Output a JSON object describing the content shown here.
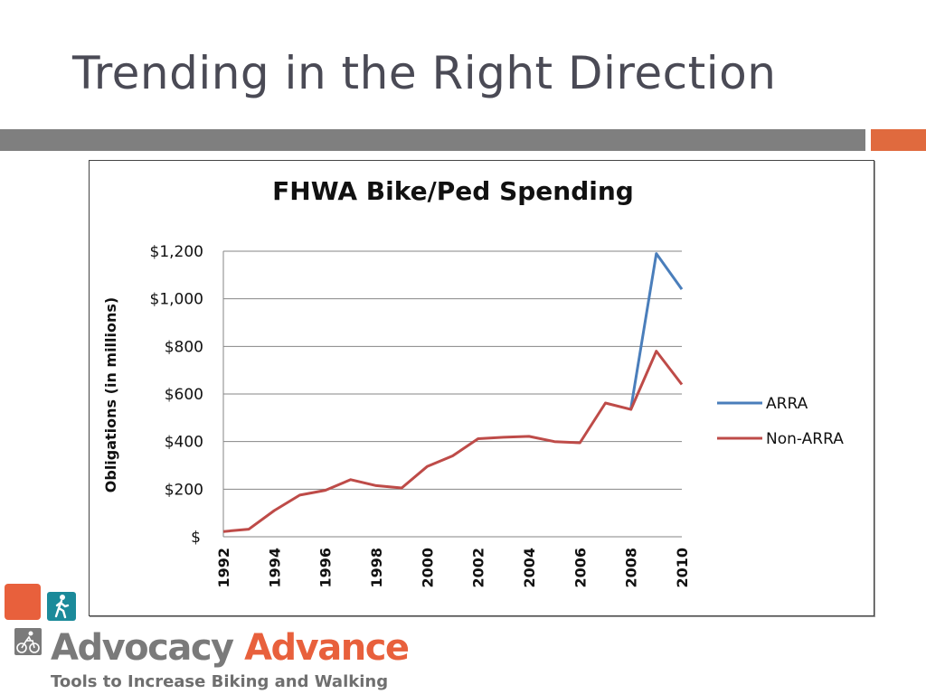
{
  "slide": {
    "title": "Trending in the Right Direction"
  },
  "colors": {
    "accent": "#e06a3e",
    "rule": "#7f7f7f",
    "arra": "#4a7ebb",
    "non_arra": "#be4b48",
    "grid": "#868686"
  },
  "chart_data": {
    "type": "line",
    "title": "FHWA Bike/Ped Spending",
    "xlabel": "",
    "ylabel": "Obligations (in millions)",
    "x": [
      1992,
      1993,
      1994,
      1995,
      1996,
      1997,
      1998,
      1999,
      2000,
      2001,
      2002,
      2003,
      2004,
      2005,
      2006,
      2007,
      2008,
      2009,
      2010
    ],
    "x_tick_labels": [
      "1992",
      "1994",
      "1996",
      "1998",
      "2000",
      "2002",
      "2004",
      "2006",
      "2008",
      "2010"
    ],
    "y_tick_labels": [
      "$",
      "$200",
      "$400",
      "$600",
      "$800",
      "$1,000",
      "$1,200"
    ],
    "ylim": [
      0,
      1200
    ],
    "grid": true,
    "legend_position": "right",
    "series": [
      {
        "name": "ARRA",
        "color": "#4a7ebb",
        "x": [
          2008,
          2009,
          2010
        ],
        "values": [
          540,
          1190,
          1040
        ]
      },
      {
        "name": "Non-ARRA",
        "color": "#be4b48",
        "x": [
          1992,
          1993,
          1994,
          1995,
          1996,
          1997,
          1998,
          1999,
          2000,
          2001,
          2002,
          2003,
          2004,
          2005,
          2006,
          2007,
          2008,
          2009,
          2010
        ],
        "values": [
          22,
          32,
          110,
          175,
          195,
          240,
          215,
          205,
          295,
          340,
          412,
          418,
          422,
          400,
          395,
          562,
          535,
          780,
          640
        ]
      }
    ]
  },
  "logo": {
    "word1": "Advocacy",
    "word2": "Advance",
    "tagline": "Tools to Increase Biking and Walking"
  }
}
